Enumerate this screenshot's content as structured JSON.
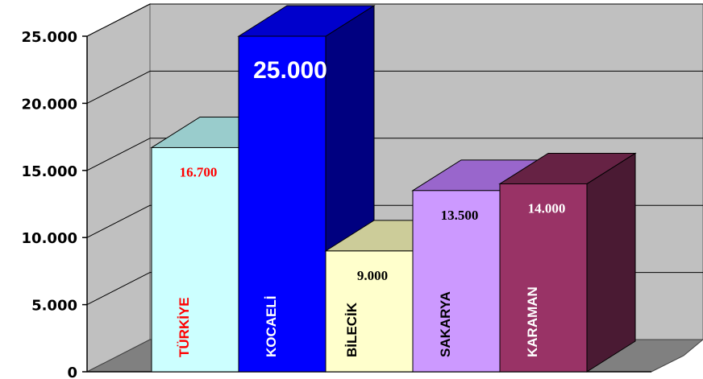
{
  "chart_data": {
    "type": "bar",
    "categories": [
      "TÜRKİYE",
      "KOCAELİ",
      "BİLECİK",
      "SAKARYA",
      "KARAMAN"
    ],
    "values": [
      16700,
      25000,
      9000,
      13500,
      14000
    ],
    "data_labels": [
      "16.700",
      "25.000",
      "9.000",
      "13.500",
      "14.000"
    ],
    "category_labels": [
      "TÜRKİYE",
      "KOCAELİ",
      "BİLECİK",
      "SAKARYA",
      "KARAMAN"
    ],
    "y_ticks": [
      "0",
      "5.000",
      "10.000",
      "15.000",
      "20.000",
      "25.000"
    ],
    "y_tick_values": [
      0,
      5000,
      10000,
      15000,
      20000,
      25000
    ],
    "ylim": [
      0,
      25000
    ],
    "grid": true,
    "three_d": true,
    "title": "",
    "xlabel": "",
    "ylabel": "",
    "colors": {
      "front": [
        "#ccffff",
        "#0000ff",
        "#ffffcc",
        "#cc99ff",
        "#993366"
      ],
      "top": [
        "#99cccc",
        "#0000cc",
        "#cccc99",
        "#9966cc",
        "#662244"
      ],
      "side": [
        "#88b8b8",
        "#000080",
        "#b3b37a",
        "#7a4fa8",
        "#4a1a33"
      ],
      "label": [
        "#ff0000",
        "#ffffff",
        "#000000",
        "#000000",
        "#ffffff"
      ],
      "data_label": [
        "#ff0000",
        "#ffffff",
        "#000000",
        "#000000",
        "#ffffff"
      ],
      "wall": "#c0c0c0",
      "floor": "#808080"
    }
  }
}
